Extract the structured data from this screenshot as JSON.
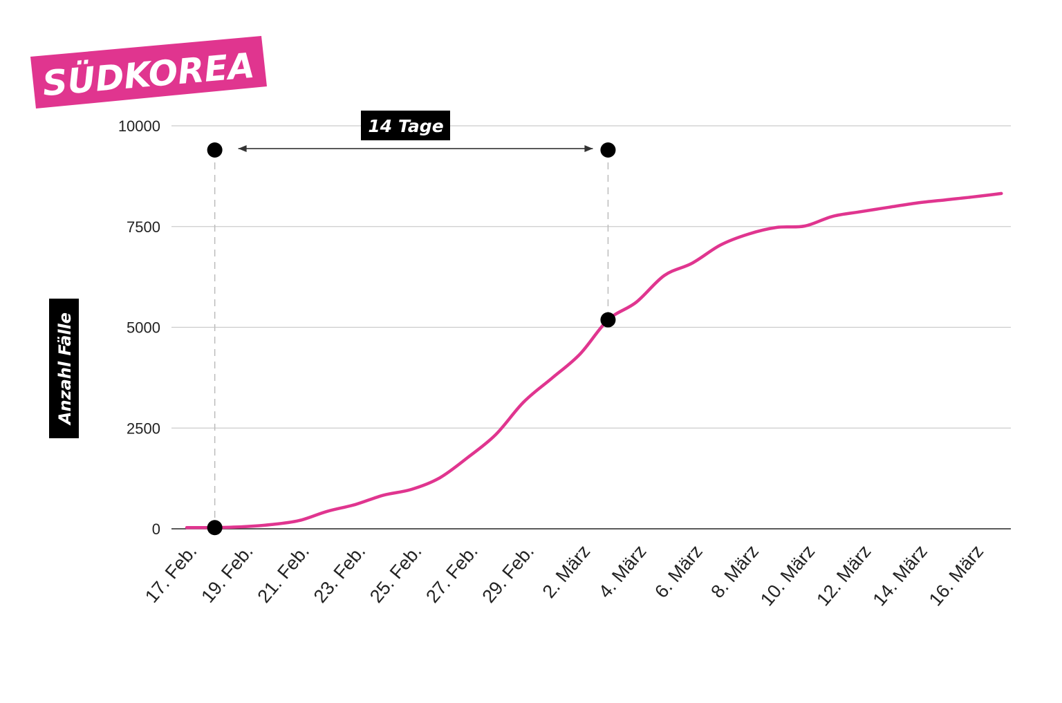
{
  "chart_data": {
    "type": "line",
    "title": "SÜDKOREA",
    "xlabel": "",
    "ylabel": "Anzahl Fälle",
    "ylim": [
      0,
      10000
    ],
    "y_ticks": [
      "0",
      "2500",
      "5000",
      "7500",
      "10000"
    ],
    "x_tick_labels": [
      "17. Feb.",
      "19. Feb.",
      "21. Feb.",
      "23. Feb.",
      "25. Feb.",
      "27. Feb.",
      "29. Feb.",
      "2. März",
      "4. März",
      "6. März",
      "8. März",
      "10. März",
      "12. März",
      "14. März",
      "16. März"
    ],
    "x": [
      "17. Feb.",
      "18. Feb.",
      "19. Feb.",
      "20. Feb.",
      "21. Feb.",
      "22. Feb.",
      "23. Feb.",
      "24. Feb.",
      "25. Feb.",
      "26. Feb.",
      "27. Feb.",
      "28. Feb.",
      "29. Feb.",
      "1. März",
      "2. März",
      "3. März",
      "4. März",
      "5. März",
      "6. März",
      "7. März",
      "8. März",
      "9. März",
      "10. März",
      "11. März",
      "12. März",
      "13. März",
      "14. März",
      "15. März",
      "16. März",
      "17. März"
    ],
    "series": [
      {
        "color": "#e0358f",
        "values": [
          30,
          31,
          51,
          104,
          204,
          433,
          602,
          833,
          977,
          1261,
          1766,
          2337,
          3150,
          3736,
          4335,
          5186,
          5621,
          6284,
          6593,
          7041,
          7314,
          7478,
          7513,
          7755,
          7869,
          7979,
          8086,
          8162,
          8236,
          8320
        ]
      }
    ],
    "markers": [
      {
        "x": "18. Feb.",
        "y": 30
      },
      {
        "x": "18. Feb.",
        "y": 9400
      },
      {
        "x": "3. März",
        "y": 9400
      },
      {
        "x": "3. März",
        "y": 5186
      }
    ],
    "annotation": {
      "label": "14 Tage",
      "from": "18. Feb.",
      "to": "3. März"
    },
    "grid": true,
    "colors": {
      "line": "#e0358f",
      "badge": "#e0358f",
      "label_box": "#000000",
      "grid": "#cccccc"
    }
  }
}
